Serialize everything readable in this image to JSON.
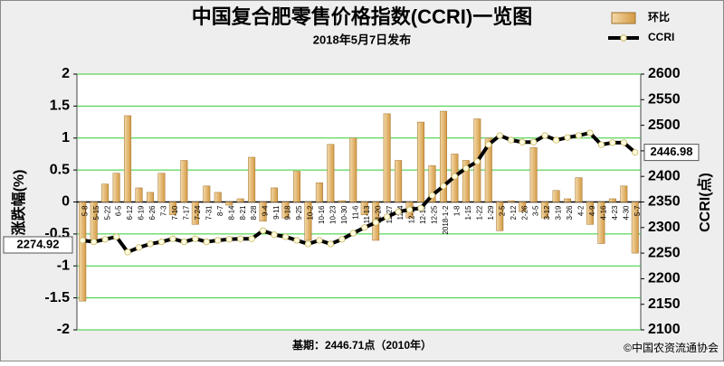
{
  "chart_data": {
    "type": "bar",
    "title": "中国复合肥零售价格指数(CCRI)一览图",
    "subtitle": "2018年5月7日发布",
    "y_label": "涨跌幅(%)",
    "y2_label": "CCRI(点)",
    "footer": "基期：2446.71点（2010年）",
    "source": "©中国农资流通协会",
    "categories": [
      "5-8",
      "5-15",
      "5-22",
      "6-5",
      "6-12",
      "6-19",
      "6-26",
      "7-3",
      "7-10",
      "7-17",
      "7-24",
      "7-31",
      "8-7",
      "8-14",
      "8-21",
      "8-28",
      "9-4",
      "9-11",
      "9-18",
      "9-25",
      "10-2",
      "10-16",
      "10-23",
      "10-30",
      "11-6",
      "11-13",
      "11-20",
      "11-27",
      "12-4",
      "12-11",
      "12-18",
      "12-25",
      "2018-1-2",
      "1-8",
      "1-15",
      "1-22",
      "1-29",
      "2-5",
      "2-12",
      "2-26",
      "3-5",
      "3-12",
      "3-19",
      "3-26",
      "4-2",
      "4-9",
      "4-16",
      "4-23",
      "4-30",
      "5-7"
    ],
    "series": [
      {
        "name": "环比",
        "type": "bar",
        "color": "#d49a45",
        "values": [
          -1.55,
          -0.6,
          0.28,
          0.45,
          1.35,
          0.22,
          0.15,
          0.45,
          -0.2,
          0.65,
          -0.35,
          0.25,
          0.15,
          -0.05,
          0.05,
          0.7,
          -0.3,
          0.22,
          -0.25,
          0.48,
          -0.6,
          0.3,
          0.9,
          0.02,
          1.0,
          -0.2,
          -0.6,
          1.38,
          0.65,
          -0.25,
          1.25,
          0.57,
          1.42,
          0.75,
          0.65,
          1.3,
          1.0,
          -0.45,
          0.02,
          -0.15,
          0.85,
          -0.25,
          0.18,
          0.05,
          0.38,
          -0.35,
          -0.65,
          0.05,
          0.25,
          -0.8
        ]
      },
      {
        "name": "CCRI",
        "type": "line",
        "color": "#000000",
        "axis": "y2",
        "values": [
          2274.92,
          2272,
          2277,
          2282,
          2252,
          2261,
          2268,
          2272,
          2278,
          2272,
          2278,
          2272,
          2275,
          2277,
          2278,
          2278,
          2294,
          2286,
          2282,
          2275,
          2268,
          2275,
          2268,
          2277,
          2289,
          2300,
          2310,
          2321,
          2331,
          2335,
          2338,
          2363,
          2381,
          2400,
          2416,
          2429,
          2462,
          2480,
          2471,
          2467,
          2467,
          2480,
          2471,
          2476,
          2480,
          2485,
          2462,
          2466,
          2466,
          2446.98
        ]
      }
    ],
    "ylim": [
      -2,
      2
    ],
    "yticks": [
      -2,
      -1.5,
      -1,
      -0.5,
      0,
      0.5,
      1,
      1.5,
      2
    ],
    "y2lim": [
      2100,
      2600
    ],
    "y2ticks": [
      2100,
      2150,
      2200,
      2250,
      2300,
      2350,
      2400,
      2450,
      2500,
      2550,
      2600
    ],
    "grid": true,
    "legend": "top-right"
  }
}
